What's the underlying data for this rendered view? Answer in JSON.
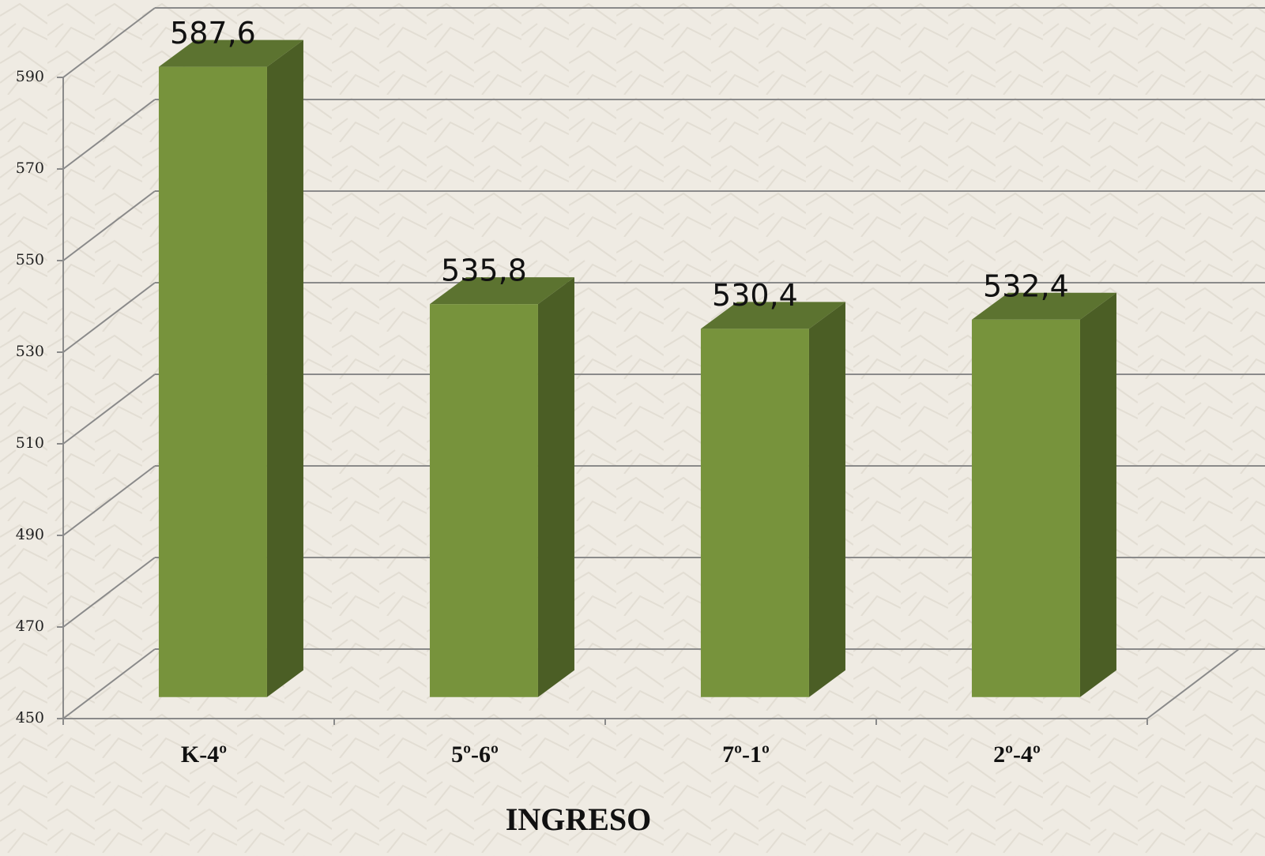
{
  "chart_data": {
    "type": "bar3d",
    "x_axis_label": "INGRESO",
    "categories": [
      "K-4º",
      "5º-6º",
      "7º-1º",
      "2º-4º"
    ],
    "values": [
      587.6,
      535.8,
      530.4,
      532.4
    ],
    "value_labels": [
      "587,6",
      "535,8",
      "530,4",
      "532,4"
    ],
    "color": "#77933c",
    "ylim": [
      450,
      590
    ],
    "yticks": [
      450,
      470,
      490,
      510,
      530,
      550,
      570,
      590
    ],
    "grid": true
  }
}
